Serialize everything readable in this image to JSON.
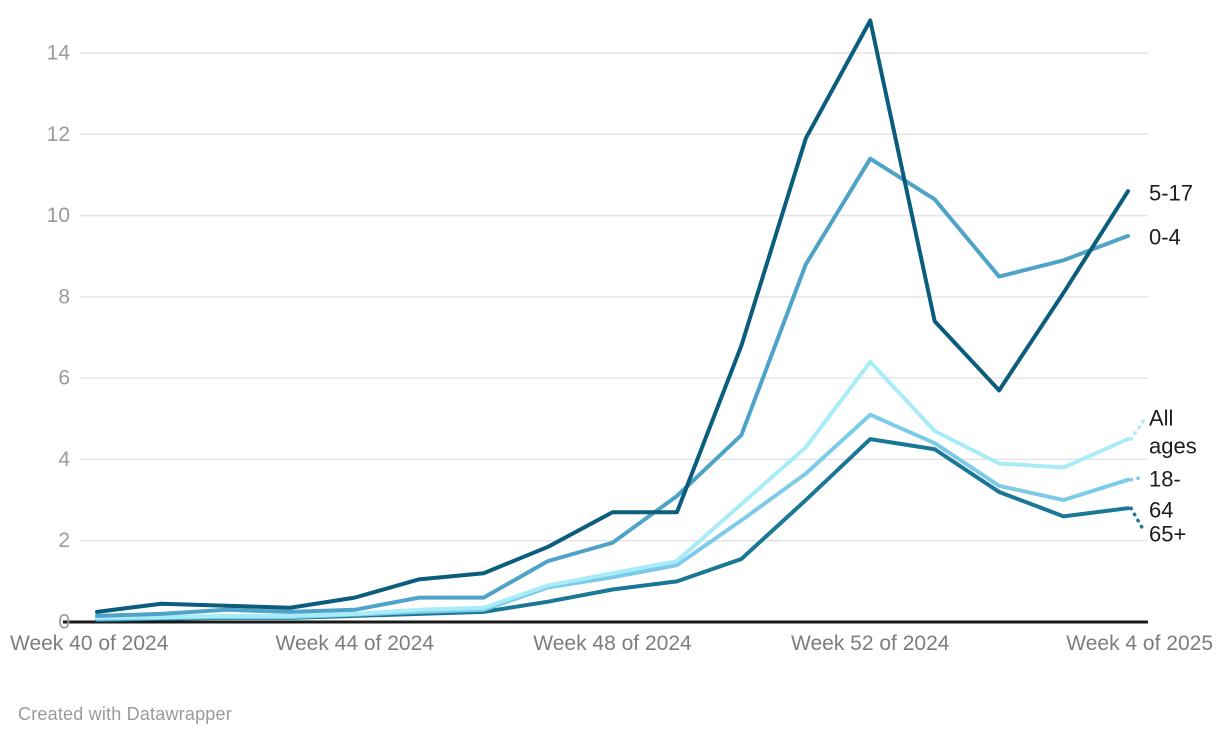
{
  "attribution": "Created with Datawrapper",
  "chart_data": {
    "type": "line",
    "title": "",
    "xlabel": "",
    "ylabel": "",
    "grid": "horizontal",
    "legend_position": "direct-labels-right",
    "ylim": [
      0,
      14
    ],
    "yticks": [
      0,
      2,
      4,
      6,
      8,
      10,
      12,
      14
    ],
    "categories": [
      "Week 40 of 2024",
      "Week 41 of 2024",
      "Week 42 of 2024",
      "Week 43 of 2024",
      "Week 44 of 2024",
      "Week 45 of 2024",
      "Week 46 of 2024",
      "Week 47 of 2024",
      "Week 48 of 2024",
      "Week 49 of 2024",
      "Week 50 of 2024",
      "Week 51 of 2024",
      "Week 52 of 2024",
      "Week 1 of 2025",
      "Week 2 of 2025",
      "Week 3 of 2025",
      "Week 4 of 2025"
    ],
    "x_ticks": [
      {
        "index": 0,
        "label": "Week 40 of 2024"
      },
      {
        "index": 4,
        "label": "Week 44 of 2024"
      },
      {
        "index": 8,
        "label": "Week 48 of 2024"
      },
      {
        "index": 12,
        "label": "Week 52 of 2024"
      },
      {
        "index": 16,
        "label": "Week 4 of 2025"
      }
    ],
    "series": [
      {
        "name": "5-17",
        "color": "#0b5d7e",
        "values": [
          0.25,
          0.45,
          0.4,
          0.35,
          0.6,
          1.05,
          1.2,
          1.85,
          2.7,
          2.7,
          6.8,
          11.9,
          14.8,
          7.4,
          5.7,
          8.1,
          10.6
        ],
        "label_lines": [
          "5-17"
        ],
        "label_ys": [
          193
        ],
        "dash": false
      },
      {
        "name": "0-4",
        "color": "#4fa3c8",
        "values": [
          0.15,
          0.2,
          0.3,
          0.25,
          0.3,
          0.6,
          0.6,
          1.5,
          1.95,
          3.1,
          4.6,
          8.8,
          11.4,
          10.4,
          8.5,
          8.9,
          9.5
        ],
        "label_lines": [
          "0-4"
        ],
        "label_ys": [
          237
        ],
        "dash": false
      },
      {
        "name": "All ages",
        "color": "#a8ecf7",
        "values": [
          0.1,
          0.12,
          0.15,
          0.15,
          0.2,
          0.3,
          0.35,
          0.9,
          1.2,
          1.5,
          2.9,
          4.3,
          6.4,
          4.7,
          3.9,
          3.8,
          4.5
        ],
        "label_lines": [
          "All",
          "ages"
        ],
        "label_ys": [
          418,
          446
        ],
        "dash": true,
        "dash_end_y": 420
      },
      {
        "name": "18-64",
        "color": "#7dcbe9",
        "values": [
          0.08,
          0.1,
          0.12,
          0.12,
          0.18,
          0.25,
          0.3,
          0.85,
          1.1,
          1.4,
          2.5,
          3.65,
          5.1,
          4.4,
          3.35,
          3.0,
          3.5
        ],
        "label_lines": [
          "18-",
          "64"
        ],
        "label_ys": [
          479,
          510
        ],
        "dash": true,
        "dash_end_y": 477
      },
      {
        "name": "65+",
        "color": "#1a7795",
        "values": [
          0.05,
          0.08,
          0.1,
          0.1,
          0.15,
          0.2,
          0.25,
          0.5,
          0.8,
          1.0,
          1.55,
          3.0,
          4.5,
          4.25,
          3.2,
          2.6,
          2.8
        ],
        "label_lines": [
          "65+"
        ],
        "label_ys": [
          534
        ],
        "dash": true,
        "dash_end_y": 531
      }
    ],
    "style": {
      "grid_color": "#e4e4e4",
      "axis_color": "#1a1a1a",
      "ytick_label_color": "#9b9b9b",
      "xtick_label_color": "#7d7d7d",
      "series_label_color": "#1d1d1d"
    }
  }
}
